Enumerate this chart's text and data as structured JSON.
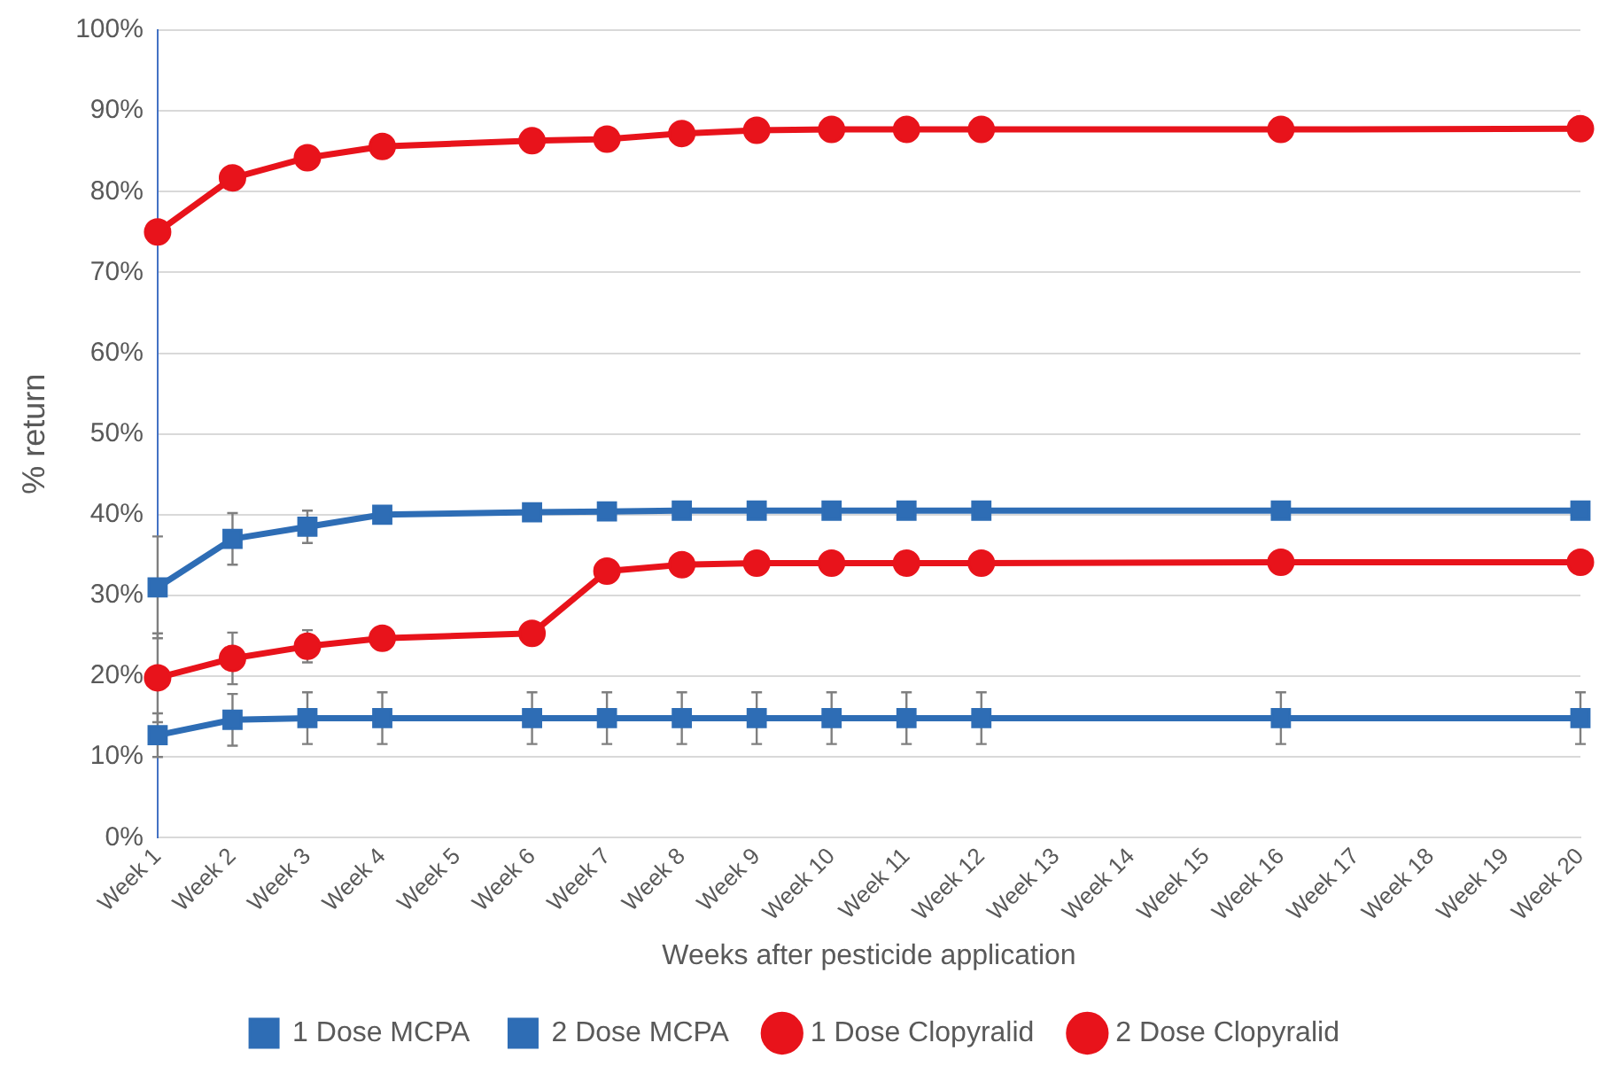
{
  "chart_data": {
    "type": "line",
    "xlabel": "Weeks after pesticide application",
    "ylabel": "% return",
    "categories": [
      "Week 1",
      "Week 2",
      "Week 3",
      "Week 4",
      "Week 5",
      "Week 6",
      "Week 7",
      "Week 8",
      "Week 9",
      "Week 10",
      "Week 11",
      "Week 12",
      "Week 13",
      "Week 14",
      "Week 15",
      "Week 16",
      "Week 17",
      "Week 18",
      "Week 19",
      "Week 20"
    ],
    "series": [
      {
        "name": "1 Dose MCPA",
        "color": "#2e6db5",
        "marker": "square",
        "values": [
          31,
          37,
          38.5,
          40,
          null,
          40.3,
          40.4,
          40.5,
          40.5,
          40.5,
          40.5,
          40.5,
          null,
          null,
          null,
          40.5,
          null,
          null,
          null,
          40.5
        ],
        "errors": [
          6.3,
          3.2,
          2,
          null,
          null,
          null,
          null,
          null,
          null,
          null,
          null,
          null,
          null,
          null,
          null,
          null,
          null,
          null,
          null,
          null
        ]
      },
      {
        "name": "2 Dose MCPA",
        "color": "#2e6db5",
        "marker": "square",
        "values": [
          12.7,
          14.6,
          14.8,
          14.8,
          null,
          14.8,
          14.8,
          14.8,
          14.8,
          14.8,
          14.8,
          14.8,
          null,
          null,
          null,
          14.8,
          null,
          null,
          null,
          14.8
        ],
        "errors": [
          2.7,
          3.2,
          3.2,
          3.2,
          null,
          3.2,
          3.2,
          3.2,
          3.2,
          3.2,
          3.2,
          3.2,
          null,
          null,
          null,
          3.2,
          null,
          null,
          null,
          3.2
        ]
      },
      {
        "name": "1 Dose Clopyralid",
        "color": "#e8131b",
        "marker": "circle",
        "values": [
          75,
          81.7,
          84.2,
          85.6,
          null,
          86.3,
          86.5,
          87.2,
          87.6,
          87.7,
          87.7,
          87.7,
          null,
          null,
          null,
          87.7,
          null,
          null,
          null,
          87.8
        ]
      },
      {
        "name": "2 Dose Clopyralid",
        "color": "#e8131b",
        "marker": "circle",
        "values": [
          19.8,
          22.2,
          23.7,
          24.7,
          null,
          25.3,
          33,
          33.8,
          34,
          34,
          34,
          34,
          null,
          null,
          null,
          34.1,
          null,
          null,
          null,
          34.1
        ],
        "errors": [
          5.5,
          3.2,
          2,
          null,
          null,
          null,
          null,
          null,
          null,
          null,
          null,
          null,
          null,
          null,
          null,
          null,
          null,
          null,
          null,
          null
        ]
      }
    ],
    "ylim": [
      0,
      100
    ],
    "yticks": [
      {
        "value": 0,
        "label": "0%"
      },
      {
        "value": 10,
        "label": "10%"
      },
      {
        "value": 20,
        "label": "20%"
      },
      {
        "value": 30,
        "label": "30%"
      },
      {
        "value": 40,
        "label": "40%"
      },
      {
        "value": 50,
        "label": "50%"
      },
      {
        "value": 60,
        "label": "60%"
      },
      {
        "value": 70,
        "label": "70%"
      },
      {
        "value": 80,
        "label": "80%"
      },
      {
        "value": 90,
        "label": "90%"
      },
      {
        "value": 100,
        "label": "100%"
      }
    ],
    "grid": "y",
    "legend": "bottom",
    "line_style": "solid"
  }
}
